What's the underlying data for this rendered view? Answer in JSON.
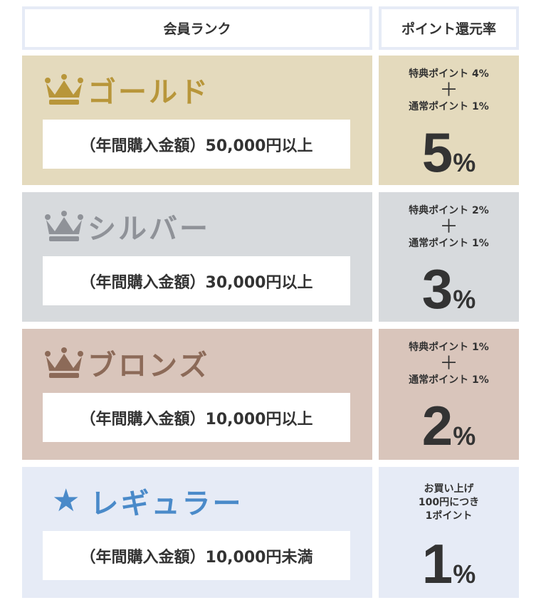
{
  "header": {
    "rank_label": "会員ランク",
    "rate_label": "ポイント還元率"
  },
  "colors": {
    "gold": "#b8963a",
    "silver": "#8f9298",
    "bronze": "#8c6a58",
    "regular": "#4a8ac9"
  },
  "tiers": [
    {
      "name": "ゴールド",
      "icon": "crown-icon",
      "condition": "（年間購入金額）50,000円以上",
      "bonus": "特典ポイント 4%",
      "plus": "＋",
      "base": "通常ポイント 1%",
      "rate_num": "5",
      "rate_unit": "%"
    },
    {
      "name": "シルバー",
      "icon": "crown-icon",
      "condition": "（年間購入金額）30,000円以上",
      "bonus": "特典ポイント 2%",
      "plus": "＋",
      "base": "通常ポイント 1%",
      "rate_num": "3",
      "rate_unit": "%"
    },
    {
      "name": "ブロンズ",
      "icon": "crown-icon",
      "condition": "（年間購入金額）10,000円以上",
      "bonus": "特典ポイント 1%",
      "plus": "＋",
      "base": "通常ポイント 1%",
      "rate_num": "2",
      "rate_unit": "%"
    },
    {
      "name": "レギュラー",
      "icon": "star-icon",
      "star": "★",
      "condition": "（年間購入金額）10,000円未満",
      "note_line1": "お買い上げ",
      "note_line2": "100円につき",
      "note_line3": "1ポイント",
      "rate_num": "1",
      "rate_unit": "%"
    }
  ]
}
